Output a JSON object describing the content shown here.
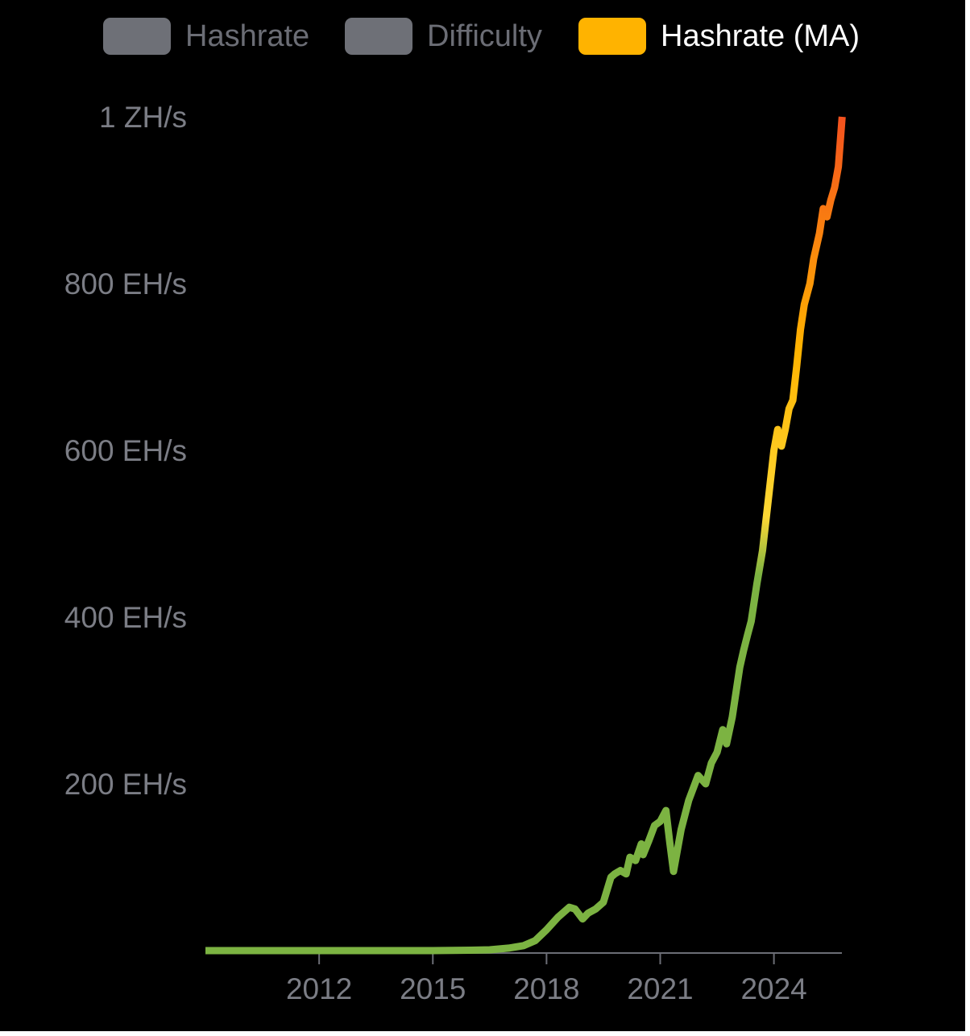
{
  "legend": [
    {
      "label": "Hashrate",
      "state": "off",
      "color": "#6e7077"
    },
    {
      "label": "Difficulty",
      "state": "off",
      "color": "#6e7077"
    },
    {
      "label": "Hashrate (MA)",
      "state": "on",
      "color": "#ffb300"
    }
  ],
  "chart_data": {
    "type": "line",
    "series": [
      {
        "name": "Hashrate (MA)",
        "x": [
          2009.0,
          2011.0,
          2013.0,
          2015.0,
          2016.0,
          2016.5,
          2017.0,
          2017.4,
          2017.7,
          2018.0,
          2018.3,
          2018.6,
          2018.75,
          2018.95,
          2019.1,
          2019.3,
          2019.5,
          2019.7,
          2019.8,
          2019.95,
          2020.1,
          2020.2,
          2020.35,
          2020.5,
          2020.55,
          2020.7,
          2020.85,
          2021.0,
          2021.15,
          2021.25,
          2021.35,
          2021.45,
          2021.55,
          2021.75,
          2022.0,
          2022.2,
          2022.35,
          2022.5,
          2022.65,
          2022.75,
          2022.9,
          2023.0,
          2023.1,
          2023.2,
          2023.3,
          2023.4,
          2023.55,
          2023.7,
          2023.8,
          2023.9,
          2024.0,
          2024.1,
          2024.2,
          2024.3,
          2024.4,
          2024.5,
          2024.6,
          2024.7,
          2024.8,
          2024.95,
          2025.05,
          2025.2,
          2025.3,
          2025.4,
          2025.5,
          2025.6,
          2025.7,
          2025.8
        ],
        "y": [
          0,
          0,
          0,
          0,
          0.5,
          1,
          3,
          6,
          12,
          25,
          40,
          52,
          50,
          38,
          45,
          50,
          58,
          88,
          92,
          96,
          92,
          112,
          108,
          128,
          115,
          132,
          150,
          155,
          168,
          130,
          95,
          120,
          145,
          180,
          210,
          200,
          225,
          238,
          265,
          248,
          280,
          310,
          340,
          360,
          378,
          395,
          440,
          480,
          520,
          560,
          600,
          625,
          605,
          625,
          650,
          660,
          700,
          745,
          775,
          800,
          830,
          860,
          890,
          880,
          900,
          915,
          940,
          1000
        ]
      }
    ],
    "ylim": [
      0,
      1000
    ],
    "xlim": [
      2009.0,
      2025.9
    ],
    "y_ticks": [
      {
        "value": 200,
        "label": "200 EH/s"
      },
      {
        "value": 400,
        "label": "400 EH/s"
      },
      {
        "value": 600,
        "label": "600 EH/s"
      },
      {
        "value": 800,
        "label": "800 EH/s"
      },
      {
        "value": 1000,
        "label": "1 ZH/s"
      }
    ],
    "x_ticks": [
      {
        "value": 2012,
        "label": "2012"
      },
      {
        "value": 2015,
        "label": "2015"
      },
      {
        "value": 2018,
        "label": "2018"
      },
      {
        "value": 2021,
        "label": "2021"
      },
      {
        "value": 2024,
        "label": "2024"
      }
    ],
    "grid": false,
    "legend_position": "top",
    "colors": {
      "background": "#000000",
      "axis": "#6b6d75",
      "tick_text": "#7b7d85",
      "gradient": [
        "#7cb342",
        "#fdd835",
        "#ffb300",
        "#f4511e"
      ]
    }
  }
}
